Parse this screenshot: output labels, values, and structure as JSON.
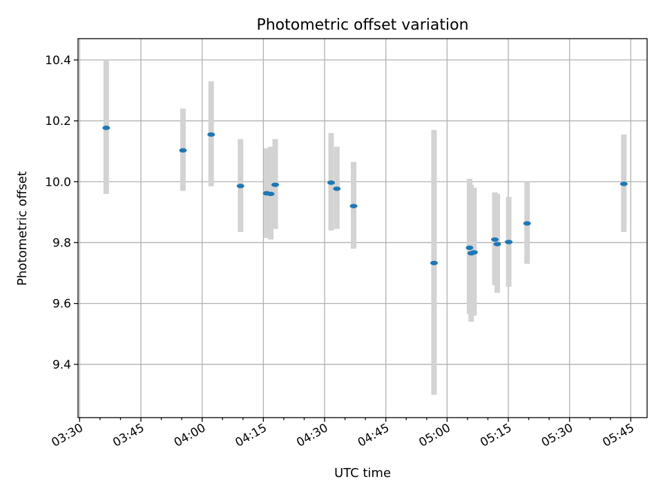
{
  "chart_data": {
    "type": "scatter",
    "title": "Photometric offset variation",
    "xlabel": "UTC time",
    "ylabel": "Photometric offset",
    "x_ticks": [
      "03:30",
      "03:45",
      "04:00",
      "04:15",
      "04:30",
      "04:45",
      "05:00",
      "05:15",
      "05:30",
      "05:45"
    ],
    "y_ticks": [
      "9.4",
      "9.6",
      "9.8",
      "10.0",
      "10.2",
      "10.4"
    ],
    "xlim": [
      "03:29:36",
      "05:49:00"
    ],
    "ylim": [
      9.225,
      10.47
    ],
    "grid": true,
    "colors": {
      "points": "#1f77b4",
      "error_bars": "#d3d3d3"
    },
    "points": [
      {
        "time": "03:36:30",
        "value": 10.177,
        "lower": 9.96,
        "upper": 10.4
      },
      {
        "time": "03:55:18",
        "value": 10.103,
        "lower": 9.97,
        "upper": 10.24
      },
      {
        "time": "04:02:12",
        "value": 10.155,
        "lower": 9.985,
        "upper": 10.33
      },
      {
        "time": "04:09:24",
        "value": 9.986,
        "lower": 9.835,
        "upper": 10.14
      },
      {
        "time": "04:15:48",
        "value": 9.962,
        "lower": 9.815,
        "upper": 10.11
      },
      {
        "time": "04:16:48",
        "value": 9.96,
        "lower": 9.81,
        "upper": 10.115
      },
      {
        "time": "04:17:54",
        "value": 9.99,
        "lower": 9.845,
        "upper": 10.14
      },
      {
        "time": "04:31:36",
        "value": 9.997,
        "lower": 9.84,
        "upper": 10.16
      },
      {
        "time": "04:33:00",
        "value": 9.977,
        "lower": 9.845,
        "upper": 10.115
      },
      {
        "time": "04:37:06",
        "value": 9.92,
        "lower": 9.78,
        "upper": 10.065
      },
      {
        "time": "04:56:48",
        "value": 9.733,
        "lower": 9.3,
        "upper": 10.17
      },
      {
        "time": "05:05:30",
        "value": 9.783,
        "lower": 9.565,
        "upper": 10.01
      },
      {
        "time": "05:05:54",
        "value": 9.765,
        "lower": 9.54,
        "upper": 9.99
      },
      {
        "time": "05:06:36",
        "value": 9.768,
        "lower": 9.56,
        "upper": 9.98
      },
      {
        "time": "05:11:42",
        "value": 9.81,
        "lower": 9.66,
        "upper": 9.965
      },
      {
        "time": "05:12:18",
        "value": 9.795,
        "lower": 9.635,
        "upper": 9.96
      },
      {
        "time": "05:15:06",
        "value": 9.802,
        "lower": 9.655,
        "upper": 9.95
      },
      {
        "time": "05:19:36",
        "value": 9.863,
        "lower": 9.73,
        "upper": 10.0
      },
      {
        "time": "05:43:18",
        "value": 9.993,
        "lower": 9.835,
        "upper": 10.155
      }
    ]
  }
}
